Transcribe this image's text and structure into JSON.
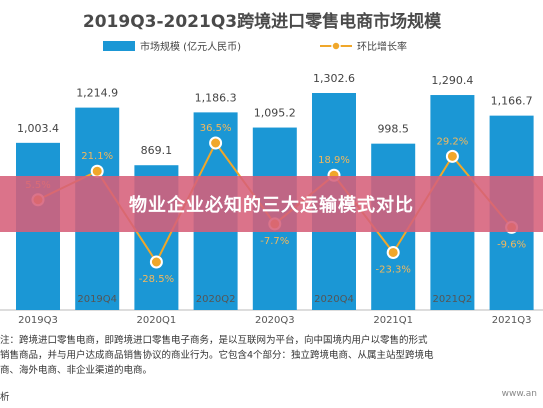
{
  "chart_data": {
    "type": "bar",
    "title": "2019Q3-2021Q3跨境进口零售电商市场规模",
    "categories": [
      "2019Q3",
      "2019Q4",
      "2020Q1",
      "2020Q2",
      "2020Q3",
      "2020Q4",
      "2021Q1",
      "2021Q2",
      "2021Q3"
    ],
    "series": [
      {
        "name": "市场规模 (亿元人民币)",
        "type": "bar",
        "color": "#1b97d5",
        "values": [
          1003.4,
          1214.9,
          869.1,
          1186.3,
          1095.2,
          1302.6,
          998.5,
          1290.4,
          1166.7
        ],
        "labels": [
          "1,003.4",
          "1,214.9",
          "869.1",
          "1,186.3",
          "1,095.2",
          "1,302.6",
          "998.5",
          "1,290.4",
          "1,166.7"
        ]
      },
      {
        "name": "环比增长率",
        "type": "line",
        "color": "#f0a72a",
        "values": [
          5.5,
          21.1,
          -28.5,
          36.5,
          -7.7,
          18.9,
          -23.3,
          29.2,
          -9.6
        ],
        "labels": [
          "5.5%",
          "21.1%",
          "-28.5%",
          "36.5%",
          "-7.7%",
          "18.9%",
          "-23.3%",
          "29.2%",
          "-9.6%"
        ]
      }
    ],
    "legend_position": "top-center",
    "grid": false
  },
  "notes": [
    "注：跨境进口零售电商，即跨境进口零售电子商务，是以互联网为平台，向中国境内用户以零售的形式",
    "销售商品，并与用户达成商品销售协议的商业行为。它包含4个部分：独立跨境电商、从属主站型跨境电",
    "商、海外电商、非企业渠道的电商。"
  ],
  "source_note": "析",
  "watermark": "www.an",
  "overlay_banner": "物业企业必知的三大运输模式对比"
}
